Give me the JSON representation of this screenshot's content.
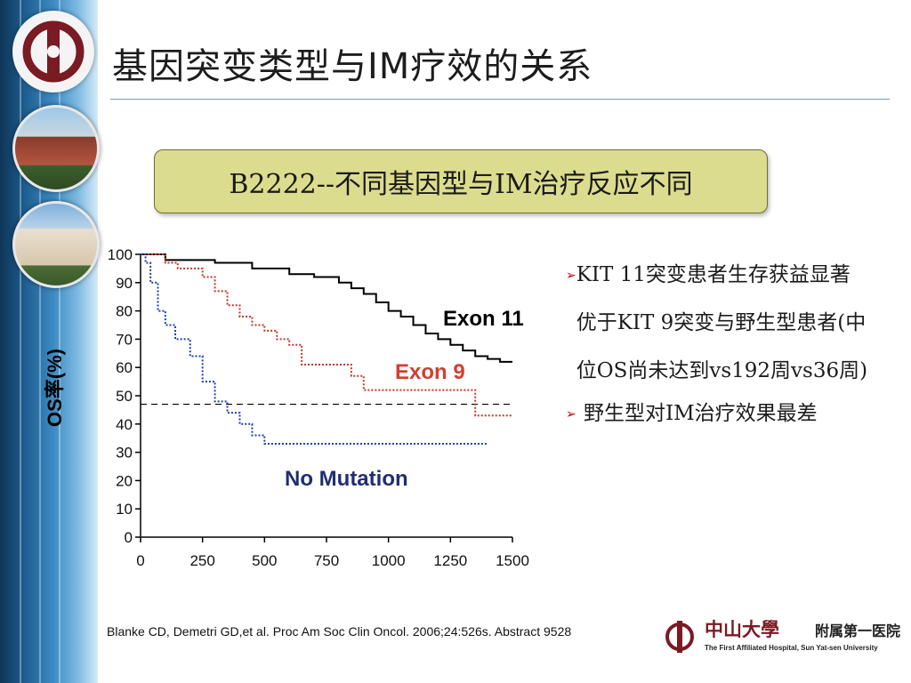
{
  "slide": {
    "title": "基因突变类型与IM疗效的关系",
    "callout": "B2222--不同基因型与IM治疗反应不同",
    "bullets": [
      {
        "text": "KIT 11突变患者生存获益显著优于KIT 9突变与野生型患者(中位OS尚未达到vs192周vs36周)"
      },
      {
        "text": "野生型对IM治疗效果最差"
      }
    ],
    "citation": "Blanke CD, Demetri GD,et al. Proc Am Soc Clin Oncol. 2006;24:526s. Abstract 9528",
    "brand": {
      "name_cn": "中山大學",
      "dept_cn": "附属第一医院",
      "name_en": "The First Affiliated Hospital, Sun Yat-sen University"
    },
    "colors": {
      "brand": "#7a1a22",
      "callout_bg": "#dcdc8e",
      "sidebar": "#1d5d8f"
    }
  },
  "chart_data": {
    "type": "line",
    "title": "",
    "xlabel": "",
    "ylabel": "OS率(%)",
    "xlim": [
      0,
      1500
    ],
    "ylim": [
      0,
      100
    ],
    "xticks": [
      0,
      250,
      500,
      750,
      1000,
      1250,
      1500
    ],
    "yticks": [
      0,
      10,
      20,
      30,
      40,
      50,
      60,
      70,
      80,
      90,
      100
    ],
    "reference_line_y": 47,
    "series": [
      {
        "name": "Exon 11",
        "color": "#000000",
        "style": "solid",
        "x": [
          0,
          100,
          100,
          300,
          450,
          600,
          700,
          800,
          850,
          900,
          950,
          1000,
          1050,
          1100,
          1150,
          1200,
          1250,
          1300,
          1350,
          1400,
          1450,
          1500
        ],
        "y": [
          100,
          100,
          98,
          97,
          95,
          93,
          92,
          90,
          88,
          86,
          83,
          80,
          78,
          75,
          72,
          70,
          68,
          66,
          64,
          63,
          62,
          62
        ]
      },
      {
        "name": "Exon 9",
        "color": "#c0392b",
        "style": "dotted",
        "x": [
          0,
          100,
          150,
          250,
          300,
          350,
          400,
          450,
          500,
          550,
          600,
          650,
          800,
          850,
          900,
          1000,
          1300,
          1350,
          1400,
          1500
        ],
        "y": [
          100,
          97,
          95,
          92,
          87,
          82,
          78,
          75,
          73,
          70,
          68,
          61,
          61,
          57,
          52,
          52,
          52,
          43,
          43,
          43
        ]
      },
      {
        "name": "No Mutation",
        "color": "#1f3fa8",
        "style": "dotted",
        "x": [
          0,
          20,
          40,
          70,
          100,
          140,
          200,
          250,
          300,
          350,
          400,
          450,
          500,
          600,
          800,
          1000,
          1100,
          1300,
          1400
        ],
        "y": [
          100,
          97,
          90,
          80,
          75,
          70,
          64,
          55,
          48,
          44,
          40,
          36,
          33,
          33,
          33,
          33,
          33,
          33,
          33
        ]
      }
    ],
    "series_labels": [
      {
        "text": "Exon 11",
        "color": "#000000"
      },
      {
        "text": "Exon 9",
        "color": "#d04030"
      },
      {
        "text": "No Mutation",
        "color": "#1f2f70"
      }
    ]
  }
}
